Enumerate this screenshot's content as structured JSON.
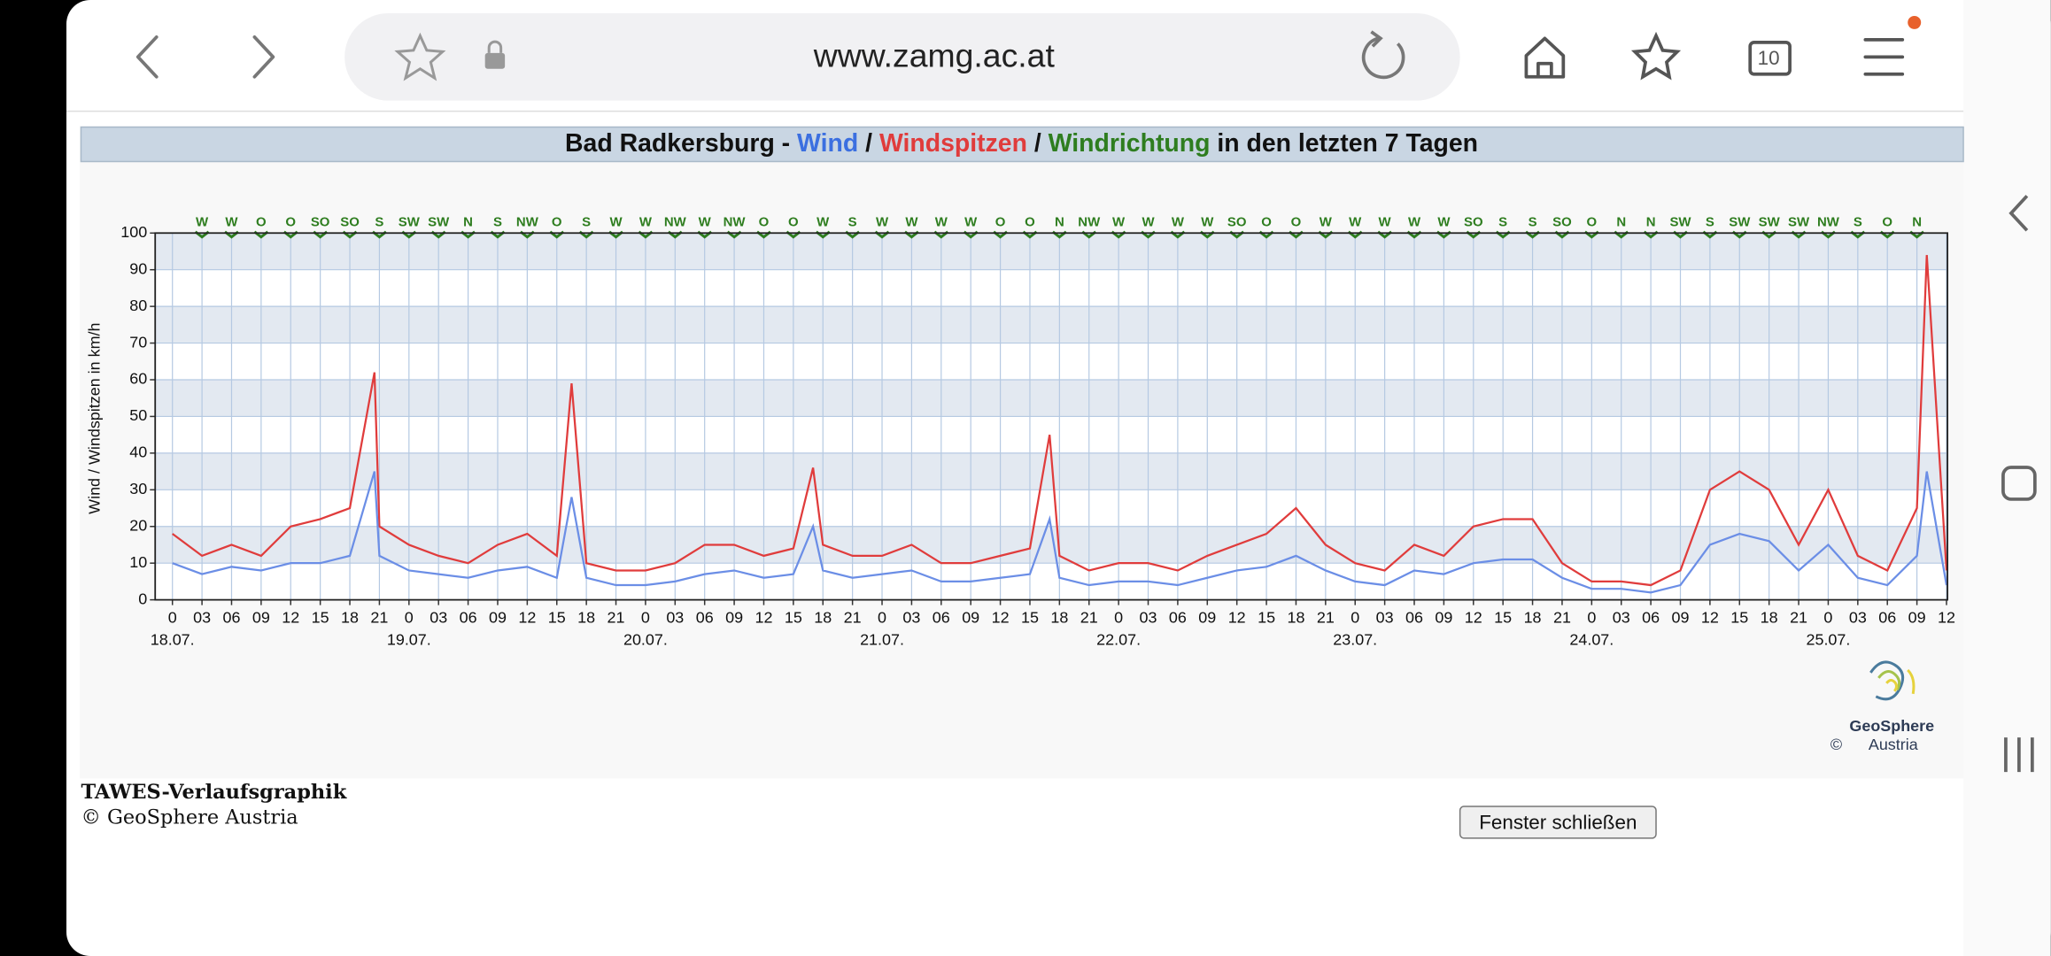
{
  "browser": {
    "url": "www.zamg.ac.at",
    "tab_count": "10"
  },
  "chart_data": {
    "type": "line",
    "title_prefix": "Bad Radkersburg -",
    "title_separator": "/",
    "direction_name": "Windrichtung",
    "title_suffix": "in den letzten 7 Tagen",
    "ylabel": "Wind / Windspitzen in km/h",
    "x": [
      0,
      3,
      6,
      9,
      12,
      15,
      18,
      20.5,
      21,
      24,
      27,
      30,
      33,
      36,
      39,
      40.5,
      42,
      45,
      48,
      51,
      54,
      57,
      60,
      63,
      65,
      66,
      69,
      72,
      75,
      78,
      81,
      84,
      87,
      89,
      90,
      93,
      96,
      99,
      102,
      105,
      108,
      111,
      114,
      117,
      120,
      123,
      126,
      129,
      132,
      135,
      138,
      141,
      144,
      147,
      150,
      153,
      156,
      159,
      162,
      165,
      168,
      171,
      174,
      177,
      178,
      180
    ],
    "series": [
      {
        "name": "Wind",
        "color": "#6b8ee6",
        "title_color": "#3b6fe0",
        "values": [
          10,
          7,
          9,
          8,
          10,
          10,
          12,
          35,
          12,
          8,
          7,
          6,
          8,
          9,
          6,
          28,
          6,
          4,
          4,
          5,
          7,
          8,
          6,
          7,
          20,
          8,
          6,
          7,
          8,
          5,
          5,
          6,
          7,
          22,
          6,
          4,
          5,
          5,
          4,
          6,
          8,
          9,
          12,
          8,
          5,
          4,
          8,
          7,
          10,
          11,
          11,
          6,
          3,
          3,
          2,
          4,
          15,
          18,
          16,
          8,
          15,
          6,
          4,
          12,
          35,
          4
        ]
      },
      {
        "name": "Windspitzen",
        "color": "#e03c3c",
        "title_color": "#e03c3c",
        "values": [
          18,
          12,
          15,
          12,
          20,
          22,
          25,
          62,
          20,
          15,
          12,
          10,
          15,
          18,
          12,
          59,
          10,
          8,
          8,
          10,
          15,
          15,
          12,
          14,
          36,
          15,
          12,
          12,
          15,
          10,
          10,
          12,
          14,
          45,
          12,
          8,
          10,
          10,
          8,
          12,
          15,
          18,
          25,
          15,
          10,
          8,
          15,
          12,
          20,
          22,
          22,
          10,
          5,
          5,
          4,
          8,
          30,
          35,
          30,
          15,
          30,
          12,
          8,
          25,
          94,
          8
        ]
      }
    ],
    "direction_color": "#2e7d1f",
    "directions": [
      "W",
      "W",
      "O",
      "O",
      "SO",
      "SO",
      "S",
      "SW",
      "SW",
      "N",
      "S",
      "NW",
      "O",
      "S",
      "W",
      "W",
      "NW",
      "W",
      "NW",
      "O",
      "O",
      "W",
      "S",
      "W",
      "W",
      "W",
      "W",
      "O",
      "O",
      "N",
      "NW",
      "W",
      "W",
      "W",
      "W",
      "SO",
      "O",
      "O",
      "W",
      "W",
      "W",
      "W",
      "W",
      "SO",
      "S",
      "S",
      "SO",
      "O",
      "N",
      "N",
      "SW",
      "S",
      "SW",
      "SW",
      "SW",
      "NW",
      "S",
      "O",
      "N"
    ],
    "xlim": [
      -1.75,
      180.1
    ],
    "xticks": [
      0,
      {
        "value": 3,
        "label": "03"
      },
      {
        "value": 6,
        "label": "06"
      },
      {
        "value": 9,
        "label": "09"
      },
      12,
      15,
      18,
      21,
      {
        "value": 24,
        "label": "0"
      },
      {
        "value": 27,
        "label": "03"
      },
      {
        "value": 30,
        "label": "06"
      },
      {
        "value": 33,
        "label": "09"
      },
      {
        "value": 36,
        "label": "12"
      },
      {
        "value": 39,
        "label": "15"
      },
      {
        "value": 42,
        "label": "18"
      },
      {
        "value": 45,
        "label": "21"
      },
      {
        "value": 48,
        "label": "0"
      },
      {
        "value": 51,
        "label": "03"
      },
      {
        "value": 54,
        "label": "06"
      },
      {
        "value": 57,
        "label": "09"
      },
      {
        "value": 60,
        "label": "12"
      },
      {
        "value": 63,
        "label": "15"
      },
      {
        "value": 66,
        "label": "18"
      },
      {
        "value": 69,
        "label": "21"
      },
      {
        "value": 72,
        "label": "0"
      },
      {
        "value": 75,
        "label": "03"
      },
      {
        "value": 78,
        "label": "06"
      },
      {
        "value": 81,
        "label": "09"
      },
      {
        "value": 84,
        "label": "12"
      },
      {
        "value": 87,
        "label": "15"
      },
      {
        "value": 90,
        "label": "18"
      },
      {
        "value": 93,
        "label": "21"
      },
      {
        "value": 96,
        "label": "0"
      },
      {
        "value": 99,
        "label": "03"
      },
      {
        "value": 102,
        "label": "06"
      },
      {
        "value": 105,
        "label": "09"
      },
      {
        "value": 108,
        "label": "12"
      },
      {
        "value": 111,
        "label": "15"
      },
      {
        "value": 114,
        "label": "18"
      },
      {
        "value": 117,
        "label": "21"
      },
      {
        "value": 120,
        "label": "0"
      },
      {
        "value": 123,
        "label": "03"
      },
      {
        "value": 126,
        "label": "06"
      },
      {
        "value": 129,
        "label": "09"
      },
      {
        "value": 132,
        "label": "12"
      },
      {
        "value": 135,
        "label": "15"
      },
      {
        "value": 138,
        "label": "18"
      },
      {
        "value": 141,
        "label": "21"
      },
      {
        "value": 144,
        "label": "0"
      },
      {
        "value": 147,
        "label": "03"
      },
      {
        "value": 150,
        "label": "06"
      },
      {
        "value": 153,
        "label": "09"
      },
      {
        "value": 156,
        "label": "12"
      },
      {
        "value": 159,
        "label": "15"
      },
      {
        "value": 162,
        "label": "18"
      },
      {
        "value": 165,
        "label": "21"
      },
      {
        "value": 168,
        "label": "0"
      },
      {
        "value": 171,
        "label": "03"
      },
      {
        "value": 174,
        "label": "06"
      },
      {
        "value": 177,
        "label": "09"
      },
      {
        "value": 180,
        "label": "12"
      }
    ],
    "date_labels": [
      {
        "value": 0,
        "label": "18.07."
      },
      {
        "value": 24,
        "label": "19.07."
      },
      {
        "value": 48,
        "label": "20.07."
      },
      {
        "value": 72,
        "label": "21.07."
      },
      {
        "value": 96,
        "label": "22.07."
      },
      {
        "value": 120,
        "label": "23.07."
      },
      {
        "value": 144,
        "label": "24.07."
      },
      {
        "value": 168,
        "label": "25.07."
      }
    ],
    "ylim": [
      0,
      100
    ],
    "yticks": [
      0,
      10,
      20,
      30,
      40,
      50,
      60,
      70,
      80,
      90,
      100
    ],
    "grid": true
  },
  "logo": {
    "name": "GeoSphere",
    "sub": "Austria",
    "copyright": "©"
  },
  "footer": {
    "title": "TAWES-Verlaufsgraphik",
    "copyright": "© GeoSphere Austria"
  },
  "button": {
    "label": "Fenster schließen"
  }
}
